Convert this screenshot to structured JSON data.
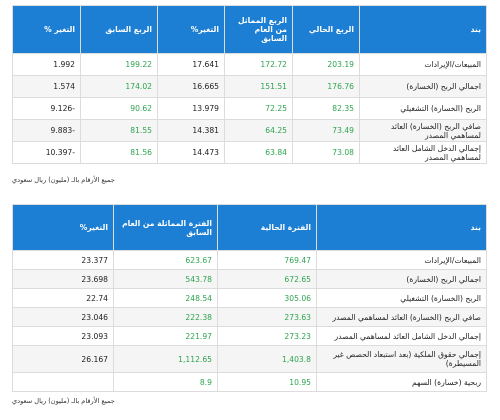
{
  "table1": {
    "headers": [
      "بند",
      "الربع الحالي",
      "الربع المماثل من العام السابق",
      "التغير%",
      "الربع السابق",
      "التغير %"
    ],
    "rows": [
      {
        "item": "المبيعات/الإيرادات",
        "current": "203.19",
        "same_prev_year": "172.72",
        "change1": "17.641",
        "prev_quarter": "199.22",
        "change2": "1.992"
      },
      {
        "item": "اجمالي الربح (الخسارة)",
        "current": "176.76",
        "same_prev_year": "151.51",
        "change1": "16.665",
        "prev_quarter": "174.02",
        "change2": "1.574"
      },
      {
        "item": "الربح (الخسارة) التشغيلي",
        "current": "82.35",
        "same_prev_year": "72.25",
        "change1": "13.979",
        "prev_quarter": "90.62",
        "change2": "9.126-"
      },
      {
        "item": "صافي الربح (الخسارة) العائد لمساهمي المصدر",
        "current": "73.49",
        "same_prev_year": "64.25",
        "change1": "14.381",
        "prev_quarter": "81.55",
        "change2": "9.883-"
      },
      {
        "item": "إجمالي الدخل الشامل العائد لمساهمي المصدر",
        "current": "73.08",
        "same_prev_year": "63.84",
        "change1": "14.473",
        "prev_quarter": "81.56",
        "change2": "10.397-"
      }
    ],
    "note": "جميع الأرقام بالـ (مليون) ريال سعودي"
  },
  "table2": {
    "headers": [
      "بند",
      "الفترة الحالية",
      "الفترة المماثلة من العام السابق",
      "التغير%"
    ],
    "rows": [
      {
        "item": "المبيعات/الإيرادات",
        "current": "769.47",
        "same_prev_year": "623.67",
        "change": "23.377"
      },
      {
        "item": "اجمالي الربح (الخسارة)",
        "current": "672.65",
        "same_prev_year": "543.78",
        "change": "23.698"
      },
      {
        "item": "الربح (الخسارة) التشغيلي",
        "current": "305.06",
        "same_prev_year": "248.54",
        "change": "22.74"
      },
      {
        "item": "صافي الربح (الخسارة) العائد لمساهمي المصدر",
        "current": "273.63",
        "same_prev_year": "222.38",
        "change": "23.046"
      },
      {
        "item": "إجمالي الدخل الشامل العائد لمساهمي المصدر",
        "current": "273.23",
        "same_prev_year": "221.97",
        "change": "23.093"
      },
      {
        "item": "إجمالي حقوق الملكية (بعد استبعاد الحصص غير المسيطرة)",
        "current": "1,403.8",
        "same_prev_year": "1,112.65",
        "change": "26.167"
      },
      {
        "item": "ربحية (خسارة) السهم",
        "current": "10.95",
        "same_prev_year": "8.9",
        "change": ""
      }
    ],
    "note": "جميع الأرقام بالـ (مليون) ريال سعودي"
  },
  "colors": {
    "header_bg": "#1d7fd3",
    "header_text": "#ffffff",
    "positive_value": "#2ea44f",
    "text": "#222222",
    "stripe": "#f5f5f5"
  }
}
